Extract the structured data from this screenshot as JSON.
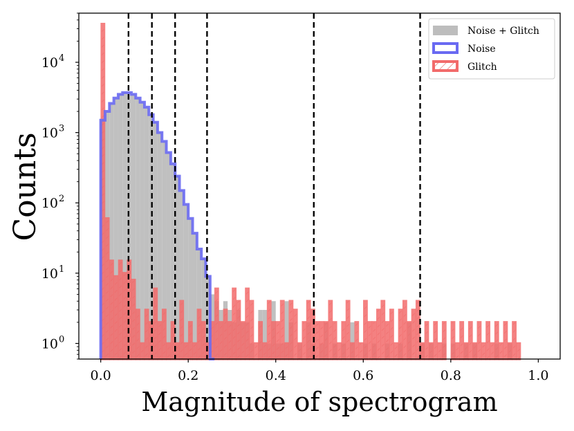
{
  "chart_data": {
    "type": "histogram",
    "title": "",
    "xlabel": "Magnitude of spectrogram",
    "ylabel": "Counts",
    "xlim": [
      -0.05,
      1.05
    ],
    "ylim": [
      0.6,
      50000
    ],
    "yscale": "log",
    "bin_width": 0.01,
    "x_ticks": [
      0.0,
      0.2,
      0.4,
      0.6,
      0.8,
      1.0
    ],
    "x_tick_labels": [
      "0.0",
      "0.2",
      "0.4",
      "0.6",
      "0.8",
      "1.0"
    ],
    "y_ticks": [
      1,
      10,
      100,
      1000,
      10000
    ],
    "y_tick_bases": [
      "10",
      "10",
      "10",
      "10",
      "10"
    ],
    "y_tick_exponents": [
      "0",
      "1",
      "2",
      "3",
      "4"
    ],
    "thresholds": [
      0.0635,
      0.117,
      0.17,
      0.243,
      0.487,
      0.73
    ],
    "legend": {
      "placement": "upper right",
      "entries": [
        {
          "label": "Noise + Glitch",
          "style": "filled",
          "color": "#bdbdbd"
        },
        {
          "label": "Noise",
          "style": "step",
          "color": "#6a6af2"
        },
        {
          "label": "Glitch",
          "style": "hatched",
          "color": "#f26b6b"
        }
      ]
    },
    "series": [
      {
        "name": "Noise + Glitch",
        "style": "filled",
        "color": "#bdbdbd",
        "bins": [
          [
            0.0,
            1500
          ],
          [
            0.01,
            2000
          ],
          [
            0.02,
            2600
          ],
          [
            0.03,
            3100
          ],
          [
            0.04,
            3500
          ],
          [
            0.05,
            3700
          ],
          [
            0.06,
            3700
          ],
          [
            0.07,
            3500
          ],
          [
            0.08,
            3100
          ],
          [
            0.09,
            2700
          ],
          [
            0.1,
            2300
          ],
          [
            0.11,
            1800
          ],
          [
            0.12,
            1400
          ],
          [
            0.13,
            1000
          ],
          [
            0.14,
            750
          ],
          [
            0.15,
            520
          ],
          [
            0.16,
            360
          ],
          [
            0.17,
            240
          ],
          [
            0.18,
            150
          ],
          [
            0.19,
            95
          ],
          [
            0.2,
            60
          ],
          [
            0.21,
            37
          ],
          [
            0.22,
            22
          ],
          [
            0.23,
            16
          ],
          [
            0.24,
            9
          ],
          [
            0.25,
            5
          ],
          [
            0.26,
            4
          ],
          [
            0.27,
            3
          ],
          [
            0.28,
            4
          ],
          [
            0.29,
            3
          ],
          [
            0.3,
            2
          ],
          [
            0.31,
            3
          ],
          [
            0.32,
            2
          ],
          [
            0.33,
            2
          ],
          [
            0.34,
            1
          ],
          [
            0.36,
            3
          ],
          [
            0.37,
            3
          ],
          [
            0.38,
            1
          ],
          [
            0.39,
            4
          ],
          [
            0.4,
            1
          ],
          [
            0.41,
            1
          ],
          [
            0.42,
            4
          ],
          [
            0.43,
            2
          ],
          [
            0.45,
            1
          ],
          [
            0.47,
            2
          ],
          [
            0.48,
            1
          ],
          [
            0.5,
            1
          ],
          [
            0.51,
            2
          ],
          [
            0.53,
            1
          ],
          [
            0.55,
            1
          ],
          [
            0.57,
            2
          ],
          [
            0.6,
            1
          ],
          [
            0.62,
            1
          ],
          [
            0.65,
            1
          ],
          [
            0.68,
            1
          ],
          [
            0.7,
            2
          ],
          [
            0.73,
            1
          ],
          [
            0.75,
            1
          ],
          [
            0.78,
            1
          ],
          [
            0.8,
            1
          ],
          [
            0.83,
            1
          ],
          [
            0.85,
            1
          ],
          [
            0.9,
            1
          ],
          [
            0.93,
            1
          ]
        ]
      },
      {
        "name": "Noise",
        "style": "step",
        "color": "#6a6af2",
        "bins": [
          [
            0.0,
            1500
          ],
          [
            0.01,
            2000
          ],
          [
            0.02,
            2600
          ],
          [
            0.03,
            3100
          ],
          [
            0.04,
            3500
          ],
          [
            0.05,
            3700
          ],
          [
            0.06,
            3700
          ],
          [
            0.07,
            3500
          ],
          [
            0.08,
            3100
          ],
          [
            0.09,
            2700
          ],
          [
            0.1,
            2300
          ],
          [
            0.11,
            1800
          ],
          [
            0.12,
            1400
          ],
          [
            0.13,
            1000
          ],
          [
            0.14,
            750
          ],
          [
            0.15,
            520
          ],
          [
            0.16,
            360
          ],
          [
            0.17,
            240
          ],
          [
            0.18,
            150
          ],
          [
            0.19,
            95
          ],
          [
            0.2,
            60
          ],
          [
            0.21,
            37
          ],
          [
            0.22,
            22
          ],
          [
            0.23,
            16
          ],
          [
            0.24,
            9
          ],
          [
            0.25,
            0.6
          ]
        ]
      },
      {
        "name": "Glitch",
        "style": "hatched",
        "color": "#f26b6b",
        "bins": [
          [
            0.0,
            35000
          ],
          [
            0.01,
            60
          ],
          [
            0.02,
            15
          ],
          [
            0.03,
            9
          ],
          [
            0.04,
            15
          ],
          [
            0.05,
            10
          ],
          [
            0.06,
            15
          ],
          [
            0.07,
            8
          ],
          [
            0.08,
            3
          ],
          [
            0.09,
            1
          ],
          [
            0.1,
            3
          ],
          [
            0.11,
            2
          ],
          [
            0.12,
            6
          ],
          [
            0.13,
            2
          ],
          [
            0.14,
            3
          ],
          [
            0.15,
            1
          ],
          [
            0.16,
            2
          ],
          [
            0.17,
            1
          ],
          [
            0.18,
            4
          ],
          [
            0.19,
            1
          ],
          [
            0.2,
            2
          ],
          [
            0.21,
            1
          ],
          [
            0.22,
            3
          ],
          [
            0.23,
            2
          ],
          [
            0.24,
            1
          ],
          [
            0.25,
            2
          ],
          [
            0.26,
            6
          ],
          [
            0.27,
            2
          ],
          [
            0.28,
            3
          ],
          [
            0.29,
            2
          ],
          [
            0.3,
            6
          ],
          [
            0.31,
            4
          ],
          [
            0.32,
            2
          ],
          [
            0.33,
            6
          ],
          [
            0.34,
            4
          ],
          [
            0.35,
            1
          ],
          [
            0.36,
            2
          ],
          [
            0.37,
            1
          ],
          [
            0.38,
            4
          ],
          [
            0.39,
            2
          ],
          [
            0.4,
            2
          ],
          [
            0.41,
            4
          ],
          [
            0.42,
            1
          ],
          [
            0.43,
            4
          ],
          [
            0.44,
            3
          ],
          [
            0.45,
            1
          ],
          [
            0.46,
            2
          ],
          [
            0.47,
            4
          ],
          [
            0.48,
            3
          ],
          [
            0.49,
            2
          ],
          [
            0.5,
            2
          ],
          [
            0.51,
            2
          ],
          [
            0.52,
            4
          ],
          [
            0.53,
            2
          ],
          [
            0.54,
            1
          ],
          [
            0.55,
            2
          ],
          [
            0.56,
            4
          ],
          [
            0.57,
            1
          ],
          [
            0.58,
            2
          ],
          [
            0.59,
            1
          ],
          [
            0.6,
            4
          ],
          [
            0.61,
            2
          ],
          [
            0.62,
            2
          ],
          [
            0.63,
            3
          ],
          [
            0.64,
            4
          ],
          [
            0.65,
            2
          ],
          [
            0.66,
            3
          ],
          [
            0.67,
            1
          ],
          [
            0.68,
            3
          ],
          [
            0.69,
            4
          ],
          [
            0.7,
            2
          ],
          [
            0.71,
            3
          ],
          [
            0.72,
            4
          ],
          [
            0.73,
            1
          ],
          [
            0.74,
            2
          ],
          [
            0.75,
            1
          ],
          [
            0.76,
            2
          ],
          [
            0.77,
            1
          ],
          [
            0.78,
            2
          ],
          [
            0.8,
            2
          ],
          [
            0.81,
            1
          ],
          [
            0.82,
            2
          ],
          [
            0.83,
            1
          ],
          [
            0.84,
            2
          ],
          [
            0.85,
            1
          ],
          [
            0.86,
            2
          ],
          [
            0.87,
            1
          ],
          [
            0.88,
            2
          ],
          [
            0.89,
            1
          ],
          [
            0.9,
            2
          ],
          [
            0.91,
            1
          ],
          [
            0.92,
            2
          ],
          [
            0.93,
            1
          ],
          [
            0.94,
            2
          ],
          [
            0.95,
            1
          ]
        ]
      }
    ]
  }
}
